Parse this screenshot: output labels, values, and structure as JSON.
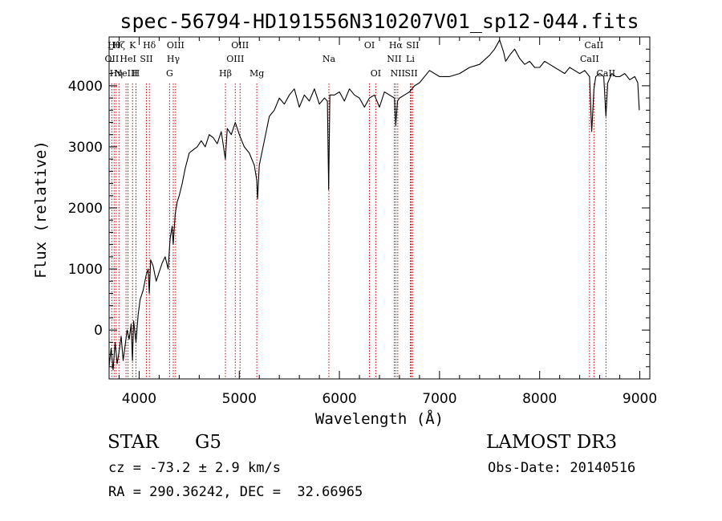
{
  "chart_data": {
    "type": "line",
    "title": "spec-56794-HD191556N310207V01_sp12-044.fits",
    "xlabel": "Wavelength (Å)",
    "ylabel": "Flux (relative)",
    "xlim": [
      3700,
      9100
    ],
    "ylim": [
      -800,
      4800
    ],
    "x_ticks": [
      4000,
      5000,
      6000,
      7000,
      8000,
      9000
    ],
    "y_ticks": [
      0,
      1000,
      2000,
      3000,
      4000
    ],
    "grid": false,
    "series": [
      {
        "x": [
          3700,
          3720,
          3740,
          3760,
          3780,
          3800,
          3820,
          3840,
          3860,
          3880,
          3900,
          3920,
          3933,
          3945,
          3968,
          3990,
          4010,
          4040,
          4070,
          4090,
          4101,
          4115,
          4140,
          4170,
          4200,
          4230,
          4260,
          4290,
          4310,
          4330,
          4340,
          4360,
          4380,
          4400,
          4430,
          4460,
          4500,
          4540,
          4580,
          4620,
          4660,
          4700,
          4740,
          4780,
          4820,
          4861,
          4880,
          4920,
          4960,
          5000,
          5050,
          5100,
          5150,
          5175,
          5183,
          5200,
          5250,
          5300,
          5350,
          5400,
          5450,
          5500,
          5550,
          5600,
          5650,
          5700,
          5750,
          5800,
          5850,
          5880,
          5893,
          5905,
          5950,
          6000,
          6050,
          6100,
          6150,
          6200,
          6250,
          6300,
          6350,
          6400,
          6450,
          6500,
          6550,
          6563,
          6580,
          6600,
          6650,
          6700,
          6750,
          6800,
          6900,
          7000,
          7100,
          7200,
          7300,
          7400,
          7500,
          7550,
          7600,
          7640,
          7660,
          7700,
          7750,
          7800,
          7850,
          7900,
          7950,
          8000,
          8050,
          8100,
          8150,
          8200,
          8250,
          8300,
          8350,
          8400,
          8450,
          8498,
          8520,
          8542,
          8560,
          8600,
          8640,
          8662,
          8680,
          8720,
          8760,
          8800,
          8850,
          8900,
          8950,
          8980,
          8995
        ],
        "y": [
          -600,
          -300,
          -650,
          -200,
          -550,
          -350,
          -100,
          -500,
          -250,
          0,
          -150,
          100,
          -500,
          150,
          -200,
          250,
          500,
          650,
          900,
          1000,
          600,
          1150,
          1050,
          800,
          950,
          1100,
          1200,
          1000,
          1500,
          1700,
          1400,
          1900,
          2100,
          2200,
          2400,
          2650,
          2900,
          2950,
          3000,
          3100,
          3000,
          3200,
          3150,
          3050,
          3250,
          2800,
          3300,
          3200,
          3400,
          3200,
          3000,
          2900,
          2700,
          2450,
          2150,
          2700,
          3100,
          3500,
          3600,
          3800,
          3700,
          3850,
          3950,
          3650,
          3850,
          3750,
          3950,
          3700,
          3800,
          3750,
          2300,
          3850,
          3850,
          3900,
          3750,
          3950,
          3850,
          3800,
          3650,
          3800,
          3850,
          3650,
          3900,
          3850,
          3800,
          3350,
          3750,
          3800,
          3850,
          3900,
          4000,
          4050,
          4250,
          4150,
          4150,
          4200,
          4300,
          4350,
          4500,
          4600,
          4750,
          4550,
          4400,
          4500,
          4600,
          4450,
          4350,
          4400,
          4300,
          4300,
          4400,
          4350,
          4300,
          4250,
          4200,
          4300,
          4250,
          4200,
          4250,
          4150,
          3250,
          3950,
          4150,
          4200,
          4150,
          3500,
          4050,
          4200,
          4150,
          4150,
          4200,
          4100,
          4150,
          4050,
          3600
        ]
      }
    ],
    "lines": [
      {
        "x": 3727,
        "label": "OII",
        "row": 1
      },
      {
        "x": 3750,
        "label": "Hθ",
        "row": 0
      },
      {
        "x": 3771,
        "label": "Hη",
        "row": 2
      },
      {
        "x": 3798,
        "label": "Hζ",
        "row": 0
      },
      {
        "x": 3869,
        "label": "NeIII",
        "row": 2
      },
      {
        "x": 3889,
        "label": "HeI",
        "row": 1
      },
      {
        "x": 3934,
        "label": "K",
        "row": 0
      },
      {
        "x": 3968,
        "label": "H",
        "row": 2
      },
      {
        "x": 4072,
        "label": "SII",
        "row": 1
      },
      {
        "x": 4102,
        "label": "Hδ",
        "row": 0
      },
      {
        "x": 4304,
        "label": "G",
        "row": 2
      },
      {
        "x": 4341,
        "label": "Hγ",
        "row": 1
      },
      {
        "x": 4364,
        "label": "OIII",
        "row": 0
      },
      {
        "x": 4862,
        "label": "Hβ",
        "row": 2
      },
      {
        "x": 4960,
        "label": "OIII",
        "row": 1
      },
      {
        "x": 5008,
        "label": "OIII",
        "row": 0
      },
      {
        "x": 5175,
        "label": "Mg",
        "row": 2
      },
      {
        "x": 5895,
        "label": "Na",
        "row": 1
      },
      {
        "x": 6300,
        "label": "OI",
        "row": 0
      },
      {
        "x": 6363,
        "label": "OI",
        "row": 2
      },
      {
        "x": 6548,
        "label": "NII",
        "row": 1
      },
      {
        "x": 6563,
        "label": "Hα",
        "row": 0
      },
      {
        "x": 6583,
        "label": "NII",
        "row": 2
      },
      {
        "x": 6708,
        "label": "Li",
        "row": 1
      },
      {
        "x": 6717,
        "label": "SII",
        "row": 2
      },
      {
        "x": 6731,
        "label": "SII",
        "row": 0
      },
      {
        "x": 8498,
        "label": "CaII",
        "row": 1
      },
      {
        "x": 8542,
        "label": "CaII",
        "row": 0
      },
      {
        "x": 8662,
        "label": "CaII",
        "row": 2
      }
    ]
  },
  "info": {
    "object_class": "STAR",
    "subclass": "G5",
    "survey": "LAMOST DR3",
    "cz": "cz = -73.2 ± 2.9 km/s",
    "obs_date": "Obs-Date: 20140516",
    "coords": "RA = 290.36242, DEC =  32.66965"
  },
  "colors": {
    "spectrum": "#000000",
    "line_markers": "#cc0000",
    "axes": "#000000",
    "background": "#ffffff"
  }
}
